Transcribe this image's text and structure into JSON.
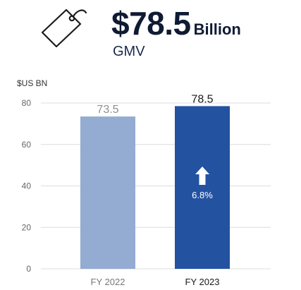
{
  "header": {
    "value": "$78.5",
    "unit": "Billion",
    "metric": "GMV",
    "icon": "price-tag-icon"
  },
  "colors": {
    "bar_prior": "#94abd2",
    "bar_current": "#2352a0",
    "grid": "#dcdcdc",
    "tick_text": "#666666",
    "label_prior": "#8f8f8f",
    "label_current": "#1a1a1a",
    "arrow": "#ffffff"
  },
  "chart_data": {
    "type": "bar",
    "ylabel": "$US BN",
    "ylim": [
      0,
      80
    ],
    "yticks": [
      0,
      20,
      40,
      60,
      80
    ],
    "grid": true,
    "categories": [
      "FY 2022",
      "FY 2023"
    ],
    "values": [
      73.5,
      78.5
    ],
    "value_labels": [
      "73.5",
      "78.5"
    ],
    "annotation": {
      "category": "FY 2023",
      "text": "6.8%",
      "icon": "up-arrow-icon"
    }
  }
}
